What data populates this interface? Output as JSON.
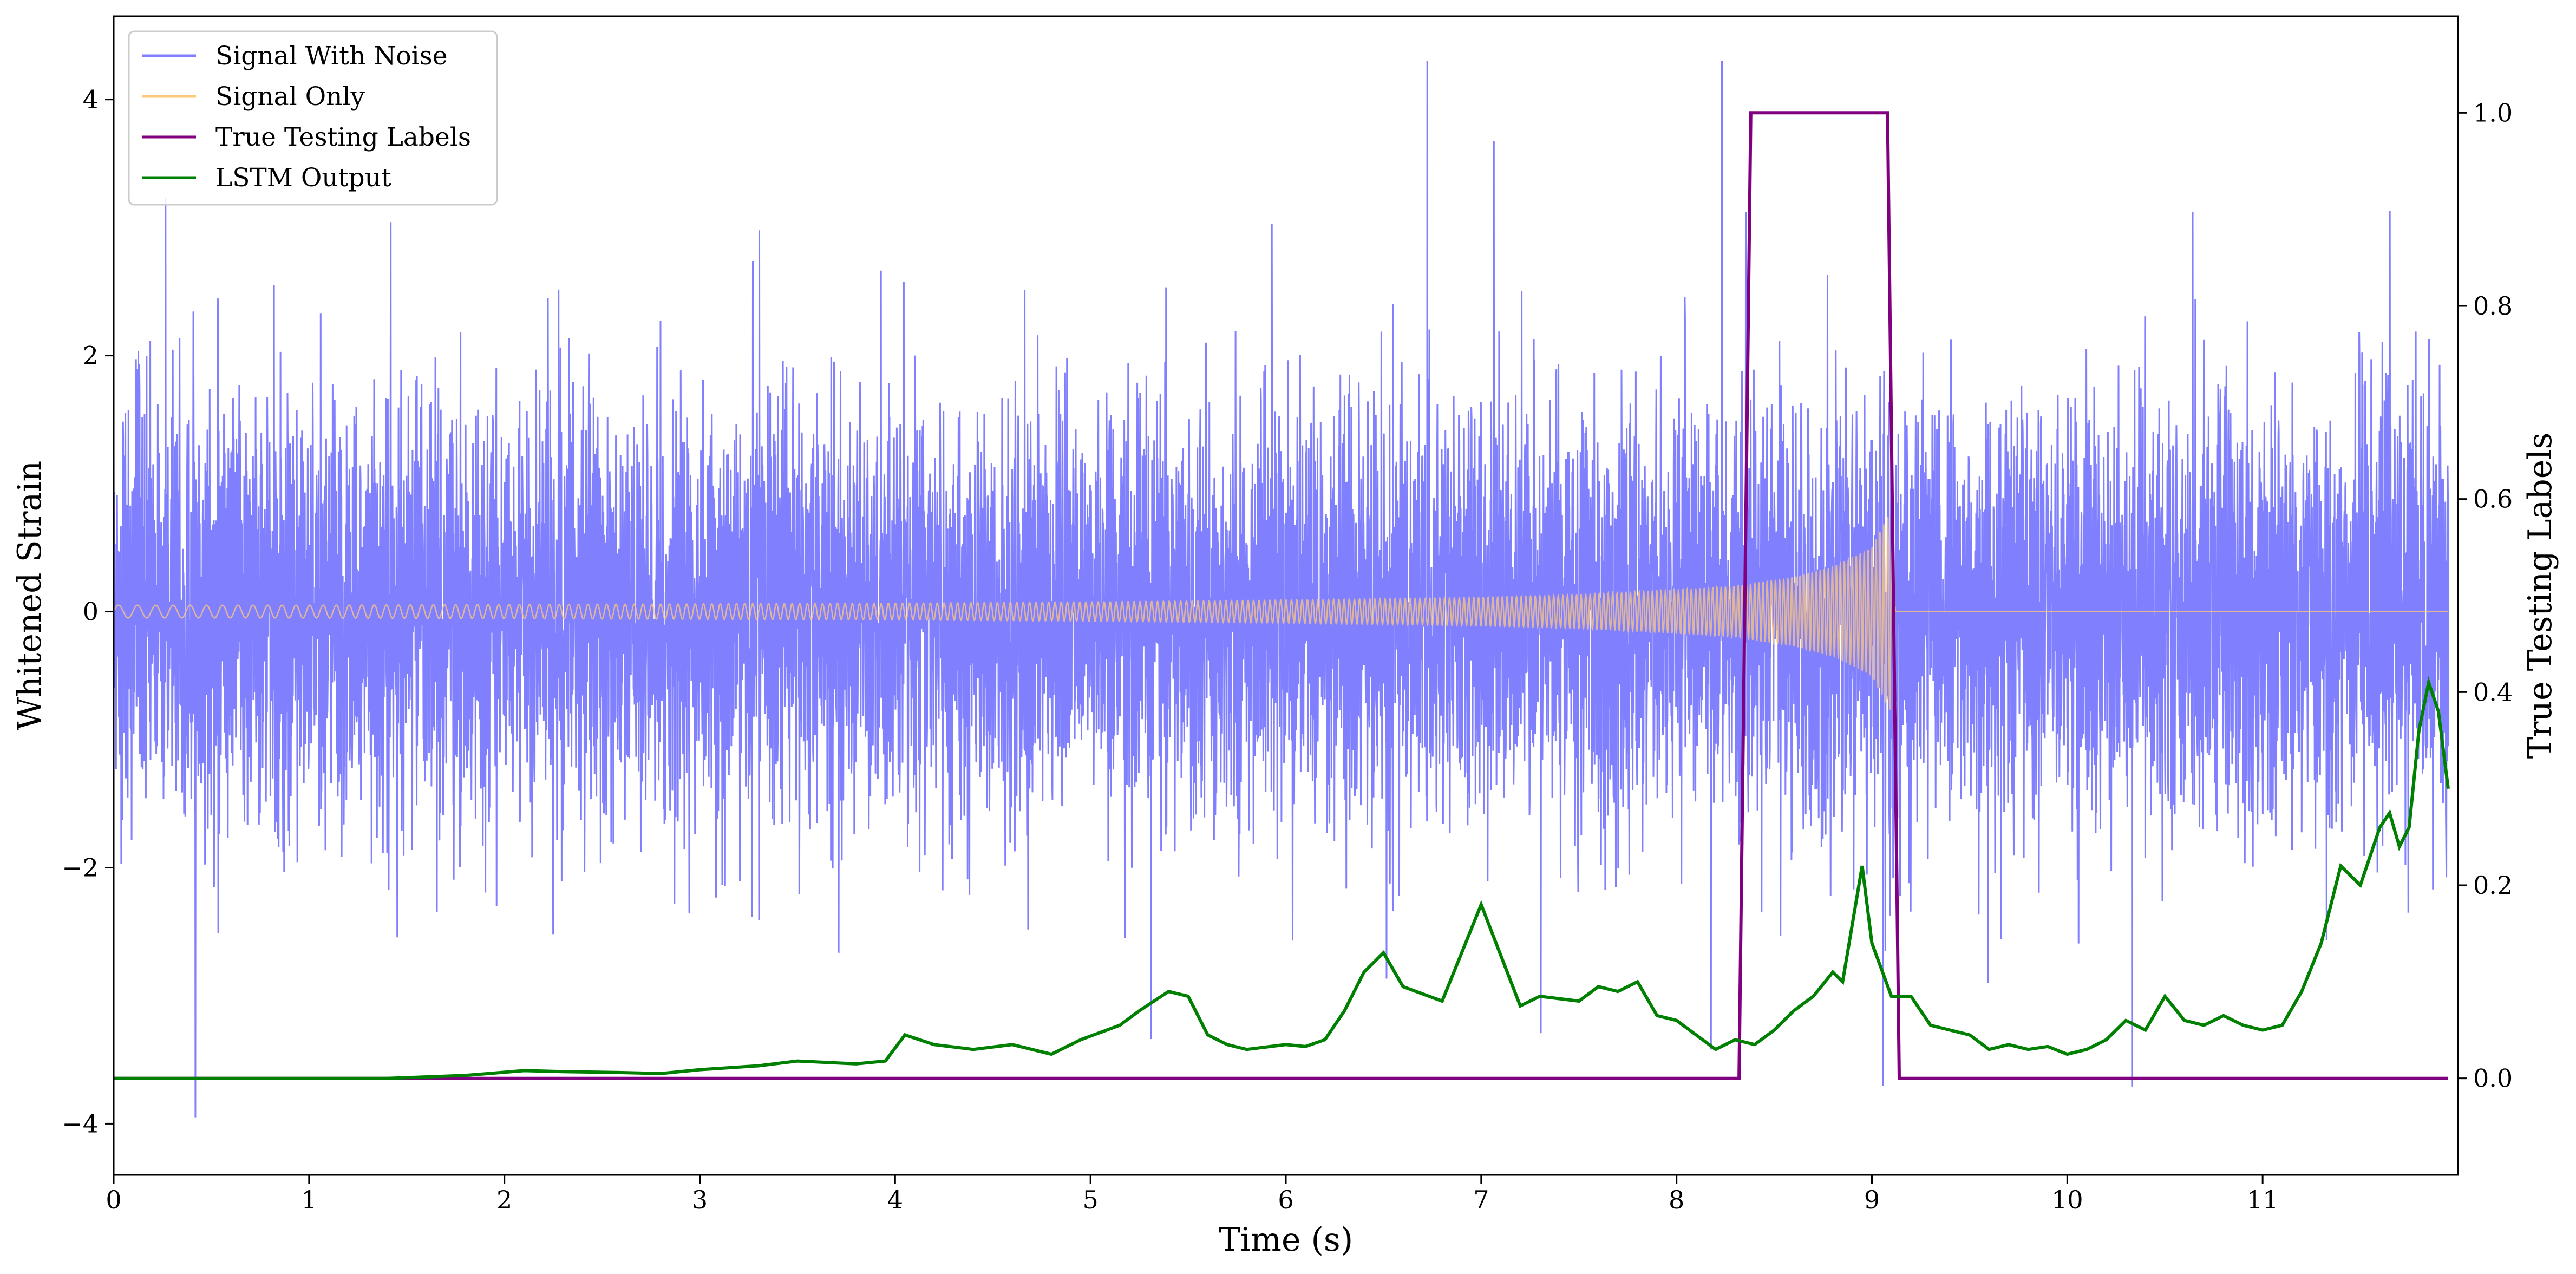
{
  "chart_data": {
    "type": "line",
    "xlabel": "Time (s)",
    "ylabel": "Whitened Strain",
    "y2label": "True Testing Labels",
    "xlim": [
      0,
      12.0
    ],
    "ylim": [
      -4.4,
      4.65
    ],
    "y2lim": [
      -0.1,
      1.1
    ],
    "xticks": [
      0,
      1,
      2,
      3,
      4,
      5,
      6,
      7,
      8,
      9,
      10,
      11
    ],
    "xtick_labels": [
      "0",
      "1",
      "2",
      "3",
      "4",
      "5",
      "6",
      "7",
      "8",
      "9",
      "10",
      "11"
    ],
    "yticks": [
      -4,
      -2,
      0,
      2,
      4
    ],
    "ytick_labels": [
      "−4",
      "−2",
      "0",
      "2",
      "4"
    ],
    "y2ticks": [
      0.0,
      0.2,
      0.4,
      0.6,
      0.8,
      1.0
    ],
    "y2tick_labels": [
      "0.0",
      "0.2",
      "0.4",
      "0.6",
      "0.8",
      "1.0"
    ],
    "grid": false,
    "legend_position": "top-left",
    "series": [
      {
        "name": "Signal With Noise",
        "axis": "left",
        "color": "#8080ff",
        "description_range": [
          -3.95,
          4.3
        ],
        "duration": 11.95
      },
      {
        "name": "Signal Only",
        "axis": "left",
        "color": "#ffc87a",
        "x": [
          0,
          1,
          2,
          3,
          4,
          5,
          6,
          7,
          7.5,
          8,
          8.3,
          8.6,
          8.8,
          9.0,
          9.1,
          9.12,
          11.95
        ],
        "amplitude": [
          0.05,
          0.05,
          0.055,
          0.06,
          0.065,
          0.075,
          0.09,
          0.11,
          0.13,
          0.17,
          0.2,
          0.27,
          0.35,
          0.5,
          0.8,
          0,
          0
        ]
      },
      {
        "name": "True Testing Labels",
        "axis": "right",
        "color": "#800080",
        "x": [
          0,
          8.32,
          8.38,
          9.08,
          9.14,
          11.95
        ],
        "y": [
          0,
          0,
          1,
          1,
          0,
          0
        ]
      },
      {
        "name": "LSTM Output",
        "axis": "right",
        "color": "#008000",
        "x": [
          0,
          1.4,
          1.8,
          2.1,
          2.3,
          2.6,
          2.8,
          3.0,
          3.3,
          3.5,
          3.8,
          3.95,
          4.05,
          4.2,
          4.4,
          4.6,
          4.8,
          4.95,
          5.15,
          5.25,
          5.4,
          5.5,
          5.6,
          5.7,
          5.8,
          6.0,
          6.1,
          6.2,
          6.3,
          6.4,
          6.5,
          6.6,
          6.8,
          6.9,
          7.0,
          7.2,
          7.3,
          7.5,
          7.6,
          7.7,
          7.8,
          7.9,
          8.0,
          8.1,
          8.2,
          8.3,
          8.4,
          8.5,
          8.6,
          8.7,
          8.8,
          8.85,
          8.95,
          9.0,
          9.1,
          9.2,
          9.3,
          9.4,
          9.5,
          9.6,
          9.7,
          9.8,
          9.9,
          10.0,
          10.1,
          10.2,
          10.3,
          10.4,
          10.5,
          10.6,
          10.7,
          10.8,
          10.9,
          11.0,
          11.1,
          11.2,
          11.3,
          11.4,
          11.5,
          11.6,
          11.65,
          11.7,
          11.75,
          11.8,
          11.85,
          11.9,
          11.95
        ],
        "y": [
          0.0,
          0.0,
          0.003,
          0.008,
          0.007,
          0.006,
          0.005,
          0.009,
          0.013,
          0.018,
          0.015,
          0.018,
          0.045,
          0.035,
          0.03,
          0.035,
          0.025,
          0.04,
          0.055,
          0.07,
          0.09,
          0.085,
          0.045,
          0.035,
          0.03,
          0.035,
          0.033,
          0.04,
          0.07,
          0.11,
          0.13,
          0.095,
          0.08,
          0.13,
          0.18,
          0.075,
          0.085,
          0.08,
          0.095,
          0.09,
          0.1,
          0.065,
          0.06,
          0.045,
          0.03,
          0.04,
          0.035,
          0.05,
          0.07,
          0.085,
          0.11,
          0.1,
          0.22,
          0.14,
          0.085,
          0.085,
          0.055,
          0.05,
          0.045,
          0.03,
          0.035,
          0.03,
          0.033,
          0.025,
          0.03,
          0.04,
          0.06,
          0.05,
          0.085,
          0.06,
          0.055,
          0.065,
          0.055,
          0.05,
          0.055,
          0.09,
          0.14,
          0.22,
          0.2,
          0.26,
          0.275,
          0.24,
          0.26,
          0.36,
          0.41,
          0.38,
          0.3
        ]
      }
    ]
  }
}
